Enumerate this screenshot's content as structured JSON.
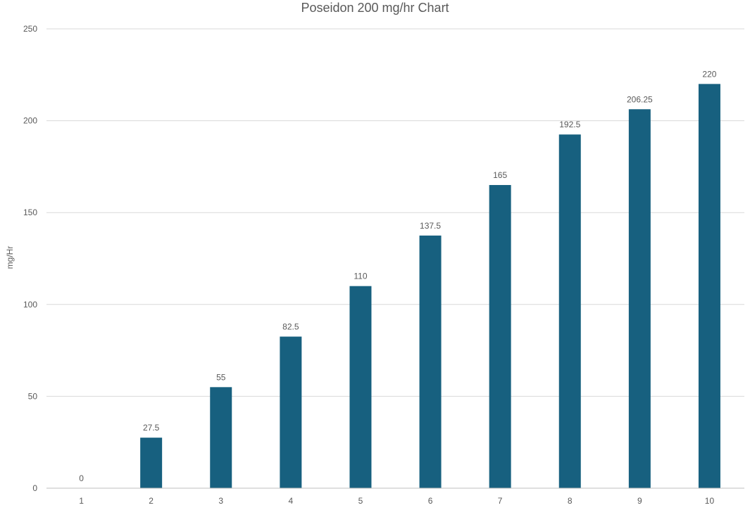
{
  "chart_data": {
    "type": "bar",
    "title": "Poseidon 200 mg/hr Chart",
    "xlabel": "",
    "ylabel": "mg/Hr",
    "categories": [
      "1",
      "2",
      "3",
      "4",
      "5",
      "6",
      "7",
      "8",
      "9",
      "10"
    ],
    "values": [
      0,
      27.5,
      55,
      82.5,
      110,
      137.5,
      165,
      192.5,
      206.25,
      220
    ],
    "data_labels": [
      "0",
      "27.5",
      "55",
      "82.5",
      "110",
      "137.5",
      "165",
      "192.5",
      "206.25",
      "220"
    ],
    "ylim": [
      0,
      250
    ],
    "yticks": [
      0,
      50,
      100,
      150,
      200,
      250
    ],
    "grid": true,
    "legend": "none",
    "bar_color": "#17607f",
    "grid_color": "#d9d9d9",
    "text_color": "#595959"
  }
}
